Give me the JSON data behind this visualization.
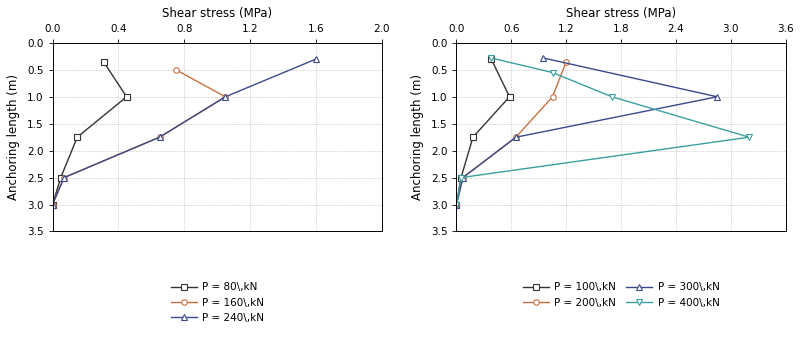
{
  "left": {
    "title": "Shear stress (MPa)",
    "xlabel": "Shear stress (MPa)",
    "ylabel": "Anchoring length (m)",
    "xlim": [
      0.0,
      2.0
    ],
    "ylim": [
      3.5,
      0.0
    ],
    "xticks": [
      0.0,
      0.4,
      0.8,
      1.2,
      1.6,
      2.0
    ],
    "yticks": [
      0.0,
      0.5,
      1.0,
      1.5,
      2.0,
      2.5,
      3.0,
      3.5
    ],
    "series": [
      {
        "label": "P = 80\\,kN",
        "color": "#333333",
        "marker": "s",
        "x": [
          0.31,
          0.45,
          0.15,
          0.05,
          0.0
        ],
        "y": [
          0.35,
          1.0,
          1.75,
          2.5,
          3.0
        ]
      },
      {
        "label": "P = 160\\,kN",
        "color": "#c87040",
        "marker": "o",
        "x": [
          0.75,
          1.05,
          0.65,
          0.07,
          0.0
        ],
        "y": [
          0.5,
          1.0,
          1.75,
          2.5,
          3.0
        ]
      },
      {
        "label": "P = 240\\,kN",
        "color": "#3a4a8a",
        "marker": "^",
        "x": [
          1.6,
          1.05,
          0.65,
          0.07,
          0.0
        ],
        "y": [
          0.3,
          1.0,
          1.75,
          2.5,
          3.0
        ]
      }
    ]
  },
  "right": {
    "title": "Shear stress (MPa)",
    "xlabel": "Shear stress (MPa)",
    "ylabel": "Anchoring length (m)",
    "xlim": [
      0.0,
      3.6
    ],
    "ylim": [
      3.5,
      0.0
    ],
    "xticks": [
      0.0,
      0.6,
      1.2,
      1.8,
      2.4,
      3.0,
      3.6
    ],
    "yticks": [
      0.0,
      0.5,
      1.0,
      1.5,
      2.0,
      2.5,
      3.0,
      3.5
    ],
    "series": [
      {
        "label": "P = 100\\,kN",
        "color": "#333333",
        "marker": "s",
        "x": [
          0.38,
          0.58,
          0.18,
          0.05,
          0.0
        ],
        "y": [
          0.3,
          1.0,
          1.75,
          2.5,
          3.0
        ]
      },
      {
        "label": "P = 200\\,kN",
        "color": "#c87040",
        "marker": "o",
        "x": [
          1.2,
          1.05,
          0.65,
          0.07,
          0.0
        ],
        "y": [
          0.35,
          1.0,
          1.75,
          2.5,
          3.0
        ]
      },
      {
        "label": "P = 300\\,kN",
        "color": "#3a4a8a",
        "marker": "^",
        "x": [
          0.95,
          2.85,
          0.65,
          0.07,
          0.0
        ],
        "y": [
          0.28,
          1.0,
          1.75,
          2.5,
          3.0
        ]
      },
      {
        "label": "P = 400\\,kN",
        "color": "#3aa0a0",
        "marker": "v",
        "x": [
          0.38,
          1.05,
          1.7,
          3.2,
          0.05,
          0.0
        ],
        "y": [
          0.28,
          0.55,
          1.0,
          1.75,
          2.5,
          3.0
        ]
      }
    ]
  }
}
